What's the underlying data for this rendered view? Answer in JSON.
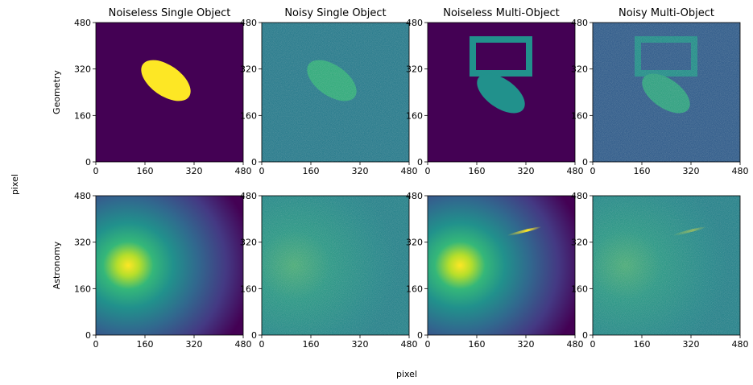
{
  "chart_data": {
    "type": "image_grid",
    "titles": [
      "Noiseless Single Object",
      "Noisy Single Object",
      "Noiseless Multi-Object",
      "Noisy Multi-Object"
    ],
    "row_labels": [
      "Geometry",
      "Astronomy"
    ],
    "xlabel": "pixel",
    "ylabel": "pixel",
    "xlim": [
      0,
      480
    ],
    "ylim": [
      0,
      480
    ],
    "xticks": [
      0,
      160,
      320,
      480
    ],
    "yticks": [
      0,
      160,
      320,
      480
    ]
  }
}
